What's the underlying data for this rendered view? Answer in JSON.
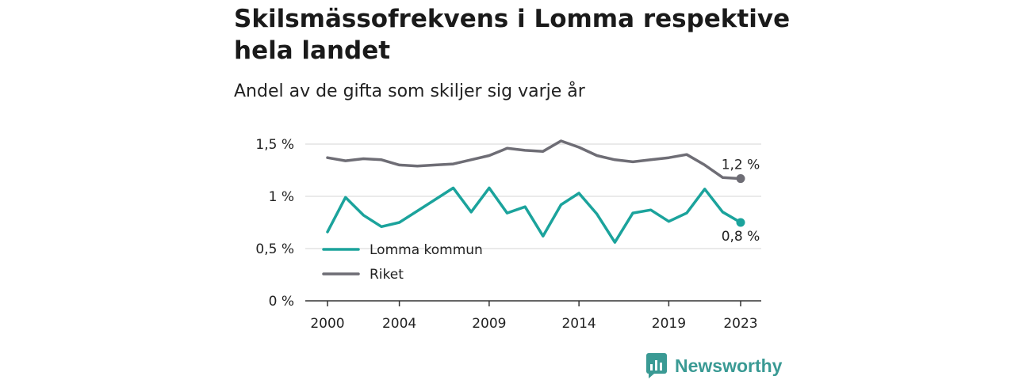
{
  "title": "Skilsmässofrekvens i Lomma respektive hela landet",
  "subtitle": "Andel av de gifta som skiljer sig varje år",
  "brand": "Newsworthy",
  "colors": {
    "lomma": "#1ba39c",
    "riket": "#6e6d75",
    "grid": "#dddddd",
    "axis": "#333333"
  },
  "chart_data": {
    "type": "line",
    "x": [
      2000,
      2001,
      2002,
      2003,
      2004,
      2005,
      2006,
      2007,
      2008,
      2009,
      2010,
      2011,
      2012,
      2013,
      2014,
      2015,
      2016,
      2017,
      2018,
      2019,
      2020,
      2021,
      2022,
      2023
    ],
    "x_ticks": [
      2000,
      2004,
      2009,
      2014,
      2019,
      2023
    ],
    "x_tick_labels": [
      "2000",
      "2004",
      "2009",
      "2014",
      "2019",
      "2023"
    ],
    "xlim": [
      2000,
      2023
    ],
    "y_ticks": [
      0,
      0.5,
      1,
      1.5
    ],
    "y_tick_labels": [
      "0 %",
      "0,5 %",
      "1 %",
      "1,5 %"
    ],
    "ylim": [
      0,
      1.5
    ],
    "grid": true,
    "legend_position": "bottom-left",
    "series": [
      {
        "name": "Lomma kommun",
        "color_key": "lomma",
        "values": [
          0.66,
          0.99,
          0.82,
          0.71,
          0.75,
          0.86,
          0.97,
          1.08,
          0.85,
          1.08,
          0.84,
          0.9,
          0.62,
          0.92,
          1.03,
          0.83,
          0.56,
          0.84,
          0.87,
          0.76,
          0.84,
          1.07,
          0.85,
          0.75
        ],
        "end_label": "0,8 %"
      },
      {
        "name": "Riket",
        "color_key": "riket",
        "values": [
          1.37,
          1.34,
          1.36,
          1.35,
          1.3,
          1.29,
          1.3,
          1.31,
          1.35,
          1.39,
          1.46,
          1.44,
          1.43,
          1.53,
          1.47,
          1.39,
          1.35,
          1.33,
          1.35,
          1.37,
          1.4,
          1.3,
          1.18,
          1.17
        ],
        "end_label": "1,2 %"
      }
    ]
  }
}
